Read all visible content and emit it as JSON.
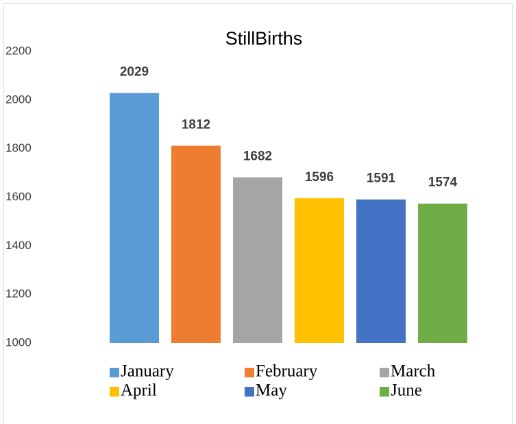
{
  "chart_data": {
    "type": "bar",
    "title": "StillBirths",
    "series": [
      {
        "name": "January",
        "color": "#5b9bd5",
        "values": [
          2029
        ]
      },
      {
        "name": "February",
        "color": "#ed7d31",
        "values": [
          1812
        ]
      },
      {
        "name": "March",
        "color": "#a5a5a5",
        "values": [
          1682
        ]
      },
      {
        "name": "April",
        "color": "#ffc000",
        "values": [
          1596
        ]
      },
      {
        "name": "May",
        "color": "#4472c4",
        "values": [
          1591
        ]
      },
      {
        "name": "June",
        "color": "#70ad47",
        "values": [
          1574
        ]
      }
    ],
    "ylim": [
      1000,
      2200
    ],
    "yticks": [
      1000,
      1200,
      1400,
      1600,
      1800,
      2000,
      2200
    ],
    "grid": false,
    "legend": "bottom"
  }
}
